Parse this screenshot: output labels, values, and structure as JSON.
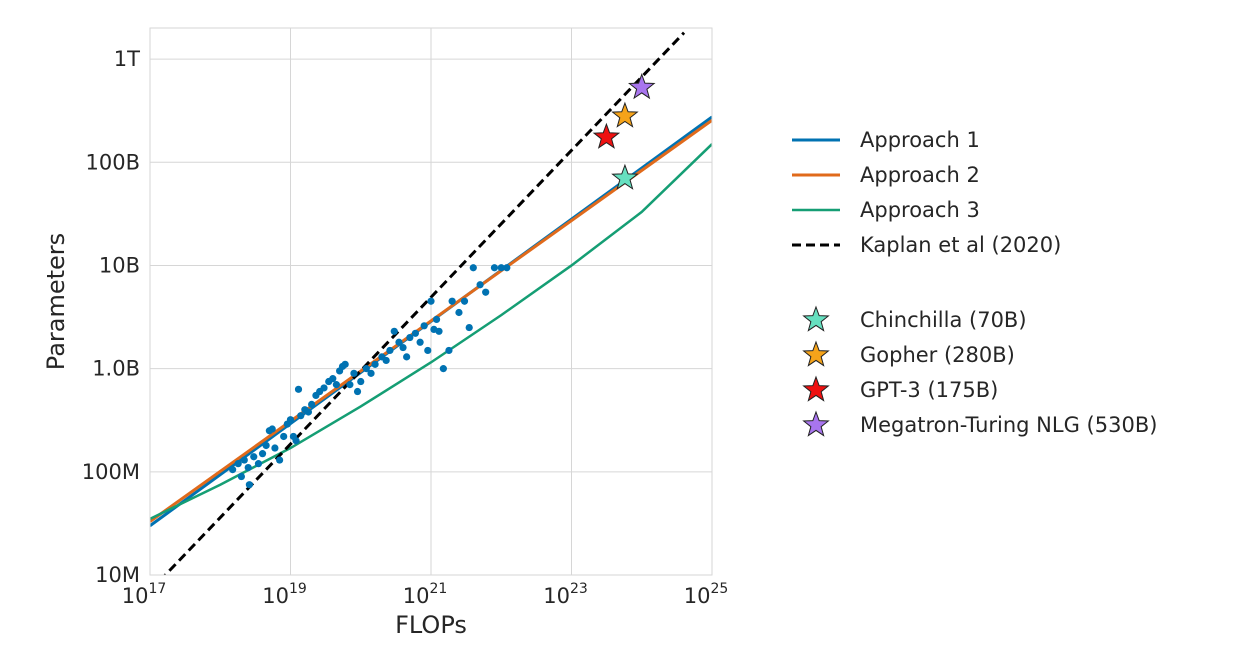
{
  "chart_data": {
    "type": "line",
    "xlabel": "FLOPs",
    "ylabel": "Parameters",
    "xscale": "log",
    "yscale": "log",
    "xlim": [
      1e+17,
      1e+25
    ],
    "ylim": [
      10000000.0,
      2000000000000.0
    ],
    "x_ticks": [
      {
        "value": 1e+17,
        "base": "10",
        "exp": "17"
      },
      {
        "value": 1e+19,
        "base": "10",
        "exp": "19"
      },
      {
        "value": 1e+21,
        "base": "10",
        "exp": "21"
      },
      {
        "value": 1e+23,
        "base": "10",
        "exp": "23"
      },
      {
        "value": 1e+25,
        "base": "10",
        "exp": "25"
      }
    ],
    "y_ticks": [
      {
        "value": 10000000.0,
        "label": "10M"
      },
      {
        "value": 100000000.0,
        "label": "100M"
      },
      {
        "value": 1000000000.0,
        "label": "1.0B"
      },
      {
        "value": 10000000000.0,
        "label": "10B"
      },
      {
        "value": 100000000000.0,
        "label": "100B"
      },
      {
        "value": 1000000000000.0,
        "label": "1T"
      }
    ],
    "grid": true,
    "legend_position": "right",
    "series": [
      {
        "name": "Approach 1",
        "kind": "line",
        "style": "solid",
        "color": "#0072b2",
        "width": 3,
        "points": [
          [
            1e+17,
            30000000.0
          ],
          [
            1e+25,
            275000000000.0
          ]
        ]
      },
      {
        "name": "Approach 2",
        "kind": "line",
        "style": "solid",
        "color": "#e06a1b",
        "width": 3,
        "points": [
          [
            1e+17,
            33000000.0
          ],
          [
            1e+25,
            255000000000.0
          ]
        ]
      },
      {
        "name": "Approach 3",
        "kind": "line",
        "style": "solid",
        "color": "#159e74",
        "width": 2.5,
        "points": [
          [
            1e+17,
            35000000.0
          ],
          [
            1e+18,
            75000000.0
          ],
          [
            1e+19,
            170000000.0
          ],
          [
            1e+20,
            430000000.0
          ],
          [
            1e+21,
            1150000000.0
          ],
          [
            1e+22,
            3300000000.0
          ],
          [
            1e+23,
            10000000000.0
          ],
          [
            1e+24,
            33000000000.0
          ],
          [
            1e+25,
            150000000000.0
          ]
        ]
      },
      {
        "name": "Kaplan et al (2020)",
        "kind": "line",
        "style": "dashed",
        "color": "#000000",
        "width": 3,
        "points": [
          [
            1e+17,
            7000000.0
          ],
          [
            4e+24,
            1800000000000.0
          ]
        ]
      }
    ],
    "scatter": {
      "color": "#0072b2",
      "points": [
        [
          1.5e+18,
          105000000.0
        ],
        [
          1.8e+18,
          120000000.0
        ],
        [
          2e+18,
          90000000.0
        ],
        [
          2.2e+18,
          130000000.0
        ],
        [
          2.5e+18,
          110000000.0
        ],
        [
          2.6e+18,
          75000000.0
        ],
        [
          3e+18,
          140000000.0
        ],
        [
          3.5e+18,
          120000000.0
        ],
        [
          4e+18,
          150000000.0
        ],
        [
          4.5e+18,
          180000000.0
        ],
        [
          5e+18,
          250000000.0
        ],
        [
          5.5e+18,
          260000000.0
        ],
        [
          6e+18,
          170000000.0
        ],
        [
          7e+18,
          130000000.0
        ],
        [
          8e+18,
          220000000.0
        ],
        [
          9e+18,
          290000000.0
        ],
        [
          1e+19,
          320000000.0
        ],
        [
          1.1e+19,
          220000000.0
        ],
        [
          1.2e+19,
          200000000.0
        ],
        [
          1.3e+19,
          630000000.0
        ],
        [
          1.4e+19,
          350000000.0
        ],
        [
          1.6e+19,
          400000000.0
        ],
        [
          1.8e+19,
          380000000.0
        ],
        [
          2e+19,
          450000000.0
        ],
        [
          2.3e+19,
          550000000.0
        ],
        [
          2.6e+19,
          600000000.0
        ],
        [
          3e+19,
          650000000.0
        ],
        [
          3.5e+19,
          750000000.0
        ],
        [
          4e+19,
          800000000.0
        ],
        [
          4.5e+19,
          700000000.0
        ],
        [
          5e+19,
          950000000.0
        ],
        [
          5.5e+19,
          1050000000.0
        ],
        [
          6e+19,
          1100000000.0
        ],
        [
          7e+19,
          700000000.0
        ],
        [
          8e+19,
          900000000.0
        ],
        [
          9e+19,
          600000000.0
        ],
        [
          1e+20,
          750000000.0
        ],
        [
          1.2e+20,
          1000000000.0
        ],
        [
          1.4e+20,
          900000000.0
        ],
        [
          1.6e+20,
          1100000000.0
        ],
        [
          2e+20,
          1300000000.0
        ],
        [
          2.3e+20,
          1200000000.0
        ],
        [
          2.6e+20,
          1500000000.0
        ],
        [
          3e+20,
          2300000000.0
        ],
        [
          3.5e+20,
          1800000000.0
        ],
        [
          4e+20,
          1600000000.0
        ],
        [
          4.5e+20,
          1300000000.0
        ],
        [
          5e+20,
          2000000000.0
        ],
        [
          6e+20,
          2200000000.0
        ],
        [
          7e+20,
          1800000000.0
        ],
        [
          8e+20,
          2600000000.0
        ],
        [
          9e+20,
          1500000000.0
        ],
        [
          1e+21,
          4500000000.0
        ],
        [
          1.1e+21,
          2400000000.0
        ],
        [
          1.2e+21,
          3000000000.0
        ],
        [
          1.3e+21,
          2300000000.0
        ],
        [
          1.5e+21,
          1000000000.0
        ],
        [
          1.8e+21,
          1500000000.0
        ],
        [
          2e+21,
          4500000000.0
        ],
        [
          2.5e+21,
          3500000000.0
        ],
        [
          3e+21,
          4500000000.0
        ],
        [
          3.5e+21,
          2500000000.0
        ],
        [
          4e+21,
          9500000000.0
        ],
        [
          5e+21,
          6500000000.0
        ],
        [
          6e+21,
          5500000000.0
        ],
        [
          8e+21,
          9500000000.0
        ],
        [
          1e+22,
          9500000000.0
        ],
        [
          1.2e+22,
          9500000000.0
        ]
      ]
    },
    "models": [
      {
        "name": "Chinchilla (70B)",
        "flops": 5.76e+23,
        "params": 70000000000.0,
        "color": "#66e0c0"
      },
      {
        "name": "Gopher (280B)",
        "flops": 5.76e+23,
        "params": 280000000000.0,
        "color": "#f5a31a"
      },
      {
        "name": "GPT-3 (175B)",
        "flops": 3.14e+23,
        "params": 175000000000.0,
        "color": "#ee1111"
      },
      {
        "name": "Megatron-Turing NLG (530B)",
        "flops": 1e+24,
        "params": 530000000000.0,
        "color": "#a875ee"
      }
    ]
  }
}
